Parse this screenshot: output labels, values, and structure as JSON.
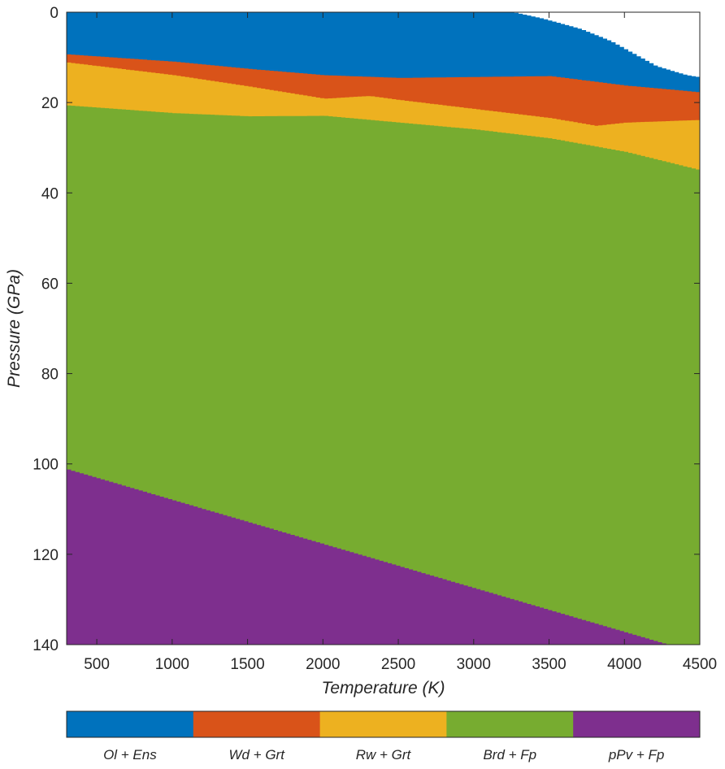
{
  "chart_data": {
    "type": "area",
    "subtype": "phase-diagram",
    "title": "",
    "xlabel": "Temperature (K)",
    "ylabel": "Pressure (GPa)",
    "xlim": [
      300,
      4500
    ],
    "ylim": [
      0,
      140
    ],
    "y_reversed": true,
    "grid": false,
    "xticks": [
      500,
      1000,
      1500,
      2000,
      2500,
      3000,
      3500,
      4000,
      4500
    ],
    "yticks": [
      0,
      20,
      40,
      60,
      80,
      100,
      120,
      140
    ],
    "phases": [
      {
        "name": "Ol + Ens",
        "color": "#0072BD"
      },
      {
        "name": "Wd + Grt",
        "color": "#D95319"
      },
      {
        "name": "Rw + Grt",
        "color": "#EDB120"
      },
      {
        "name": "Brd + Fp",
        "color": "#77AC30"
      },
      {
        "name": "pPv + Fp",
        "color": "#7E2F8E"
      }
    ],
    "boundaries": {
      "blank_top": {
        "note": "unfilled region above Ol + Ens at high temperature",
        "T": [
          3240,
          3450,
          3700,
          3900,
          3960,
          3850,
          4000,
          4200,
          4400,
          4500
        ],
        "P": [
          0,
          1.5,
          3.8,
          6.5,
          7.0,
          8.5,
          9.8,
          12.0,
          14.0,
          14.5
        ]
      },
      "Ol+Ens|Wd+Grt": {
        "T": [
          300,
          1000,
          1500,
          2000,
          2500,
          3000,
          3500,
          4000,
          4500
        ],
        "P": [
          9.4,
          11.0,
          12.6,
          14.0,
          14.6,
          14.4,
          14.2,
          16.3,
          17.8
        ]
      },
      "Wd+Grt|Rw+Grt": {
        "T": [
          300,
          1000,
          1500,
          2000,
          2300,
          2500,
          3000,
          3500,
          3800,
          4000,
          4500
        ],
        "P": [
          11.2,
          14.0,
          16.5,
          19.2,
          18.6,
          19.5,
          21.5,
          23.5,
          25.2,
          24.5,
          23.9
        ]
      },
      "Rw+Grt|Brd+Fp": {
        "T": [
          300,
          1000,
          1500,
          2000,
          2500,
          3000,
          3500,
          4000,
          4500
        ],
        "P": [
          20.7,
          22.4,
          23.1,
          23.0,
          24.5,
          26.0,
          28.0,
          31.0,
          35.1
        ]
      },
      "Brd+Fp|pPv+Fp": {
        "T": [
          300,
          1000,
          1500,
          2000,
          2500,
          3000,
          3500,
          4000,
          4270
        ],
        "P": [
          101.3,
          107.7,
          112.3,
          116.9,
          121.4,
          126.0,
          130.6,
          135.2,
          140.0
        ]
      }
    },
    "colorbar": {
      "placement": "bottom",
      "labels": [
        "Ol + Ens",
        "Wd + Grt",
        "Rw + Grt",
        "Brd + Fp",
        "pPv + Fp"
      ]
    }
  }
}
